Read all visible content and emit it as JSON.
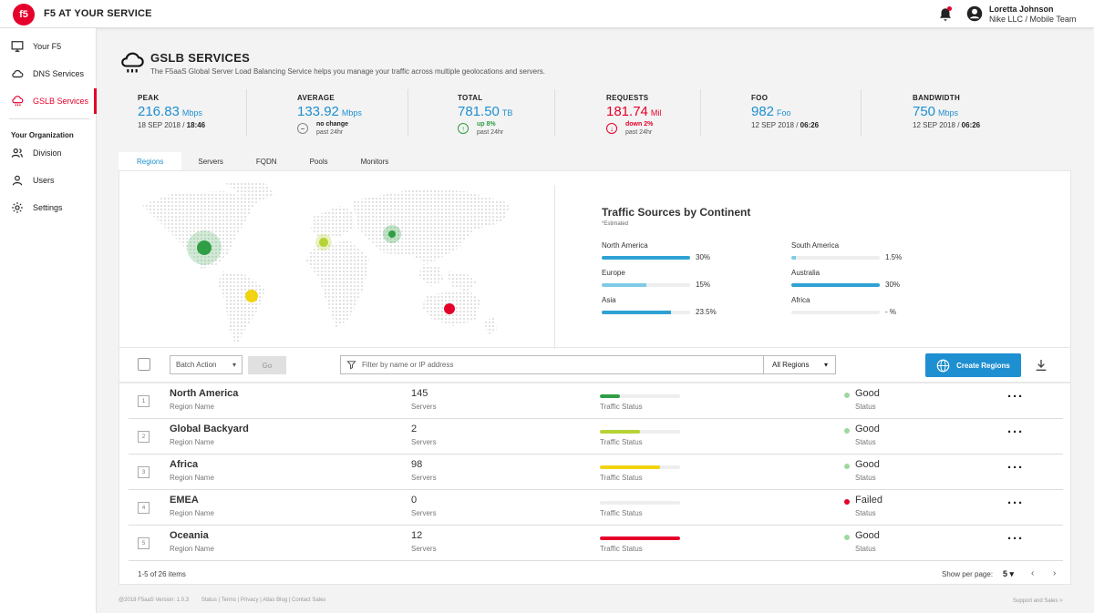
{
  "header": {
    "logo_text": "f5",
    "brand": "F5 AT YOUR SERVICE",
    "user_name": "Loretta Johnson",
    "user_org": "Nike LLC /  Mobile Team"
  },
  "sidebar": {
    "items": [
      {
        "label": "Your F5"
      },
      {
        "label": "DNS Services"
      },
      {
        "label": "GSLB Services"
      }
    ],
    "org_heading": "Your Organization",
    "org_items": [
      {
        "label": "Division"
      },
      {
        "label": "Users"
      },
      {
        "label": "Settings"
      }
    ]
  },
  "page": {
    "title": "GSLB SERVICES",
    "subtitle": "The F5aaS Global Server Load Balancing Service helps you manage your traffic across multiple geolocations and servers."
  },
  "stats": [
    {
      "label": "PEAK",
      "value": "216.83",
      "unit": "Mbps",
      "date": "18 SEP 2018 / ",
      "time": "18:46"
    },
    {
      "label": "AVERAGE",
      "value": "133.92",
      "unit": "Mbps",
      "trend_icon": "−",
      "trend_t1": "no change",
      "trend_t2": "past 24hr"
    },
    {
      "label": "TOTAL",
      "value": "781.50",
      "unit": "TB",
      "trend_icon": "↑",
      "trend_t1": "up 8%",
      "trend_t2": "past 24hr"
    },
    {
      "label": "REQUESTS",
      "value": "181.74",
      "unit": "Mil",
      "trend_icon": "↓",
      "trend_t1": "down 2%",
      "trend_t2": "past 24hr"
    },
    {
      "label": "FOO",
      "value": "982",
      "unit": "Foo",
      "date": "12 SEP 2018 / ",
      "time": "06:26"
    },
    {
      "label": "BANDWIDTH",
      "value": "750",
      "unit": "Mbps",
      "date": "12 SEP 2018 / ",
      "time": "06:26"
    }
  ],
  "tabs": [
    "Regions",
    "Servers",
    "FQDN",
    "Pools",
    "Monitors"
  ],
  "sources": {
    "title": "Traffic Sources by Continent",
    "subtitle": "*Estimated",
    "items": [
      {
        "name": "North America",
        "value": "30%",
        "fraction": 0.3,
        "color": "#2ea2d3"
      },
      {
        "name": "South America",
        "value": "1.5%",
        "fraction": 0.015,
        "color": "#7fcbe6"
      },
      {
        "name": "Europe",
        "value": "15%",
        "fraction": 0.15,
        "color": "#7fcbe6"
      },
      {
        "name": "Australia",
        "value": "30%",
        "fraction": 0.3,
        "color": "#2ea2d3"
      },
      {
        "name": "Asia",
        "value": "23.5%",
        "fraction": 0.235,
        "color": "#2ea2d3"
      },
      {
        "name": "Africa",
        "value": "- %",
        "fraction": 0,
        "color": "#2ea2d3"
      }
    ]
  },
  "toolbar": {
    "batch_label": "Batch Action",
    "go_label": "Go",
    "filter_placeholder": "Filter by name or IP address",
    "region_select": "All Regions",
    "create_label": "Create Regions"
  },
  "table": {
    "name_sub": "Region Name",
    "servers_sub": "Servers",
    "traffic_sub": "Traffic Status",
    "status_sub": "Status",
    "rows": [
      {
        "num": "1",
        "name": "North America",
        "servers": "145",
        "traffic": 0.25,
        "traffic_color": "#2f9e44",
        "status": "Good",
        "status_color": "#9ed8a0"
      },
      {
        "num": "2",
        "name": "Global Backyard",
        "servers": "2",
        "traffic": 0.5,
        "traffic_color": "#b5d334",
        "status": "Good",
        "status_color": "#9ed8a0"
      },
      {
        "num": "3",
        "name": "Africa",
        "servers": "98",
        "traffic": 0.75,
        "traffic_color": "#f2d30f",
        "status": "Good",
        "status_color": "#9ed8a0"
      },
      {
        "num": "4",
        "name": "EMEA",
        "servers": "0",
        "traffic": 0,
        "traffic_color": "#e4002b",
        "status": "Failed",
        "status_color": "#e4002b"
      },
      {
        "num": "5",
        "name": "Oceania",
        "servers": "12",
        "traffic": 1.0,
        "traffic_color": "#e4002b",
        "status": "Good",
        "status_color": "#9ed8a0"
      }
    ]
  },
  "pagination": {
    "info": "1-5 of 26 items",
    "label": "Show per page:",
    "size": "5"
  },
  "footer": {
    "copyright": "@2018 F5aaS Version: 1.0.3",
    "links": [
      "Status",
      "Terms",
      "Privacy",
      "Atlas Blog",
      "Contact Sales"
    ],
    "right": "Support and Sales >"
  },
  "colors": {
    "brand_red": "#e4002b",
    "accent_blue": "#1e8fd0"
  }
}
